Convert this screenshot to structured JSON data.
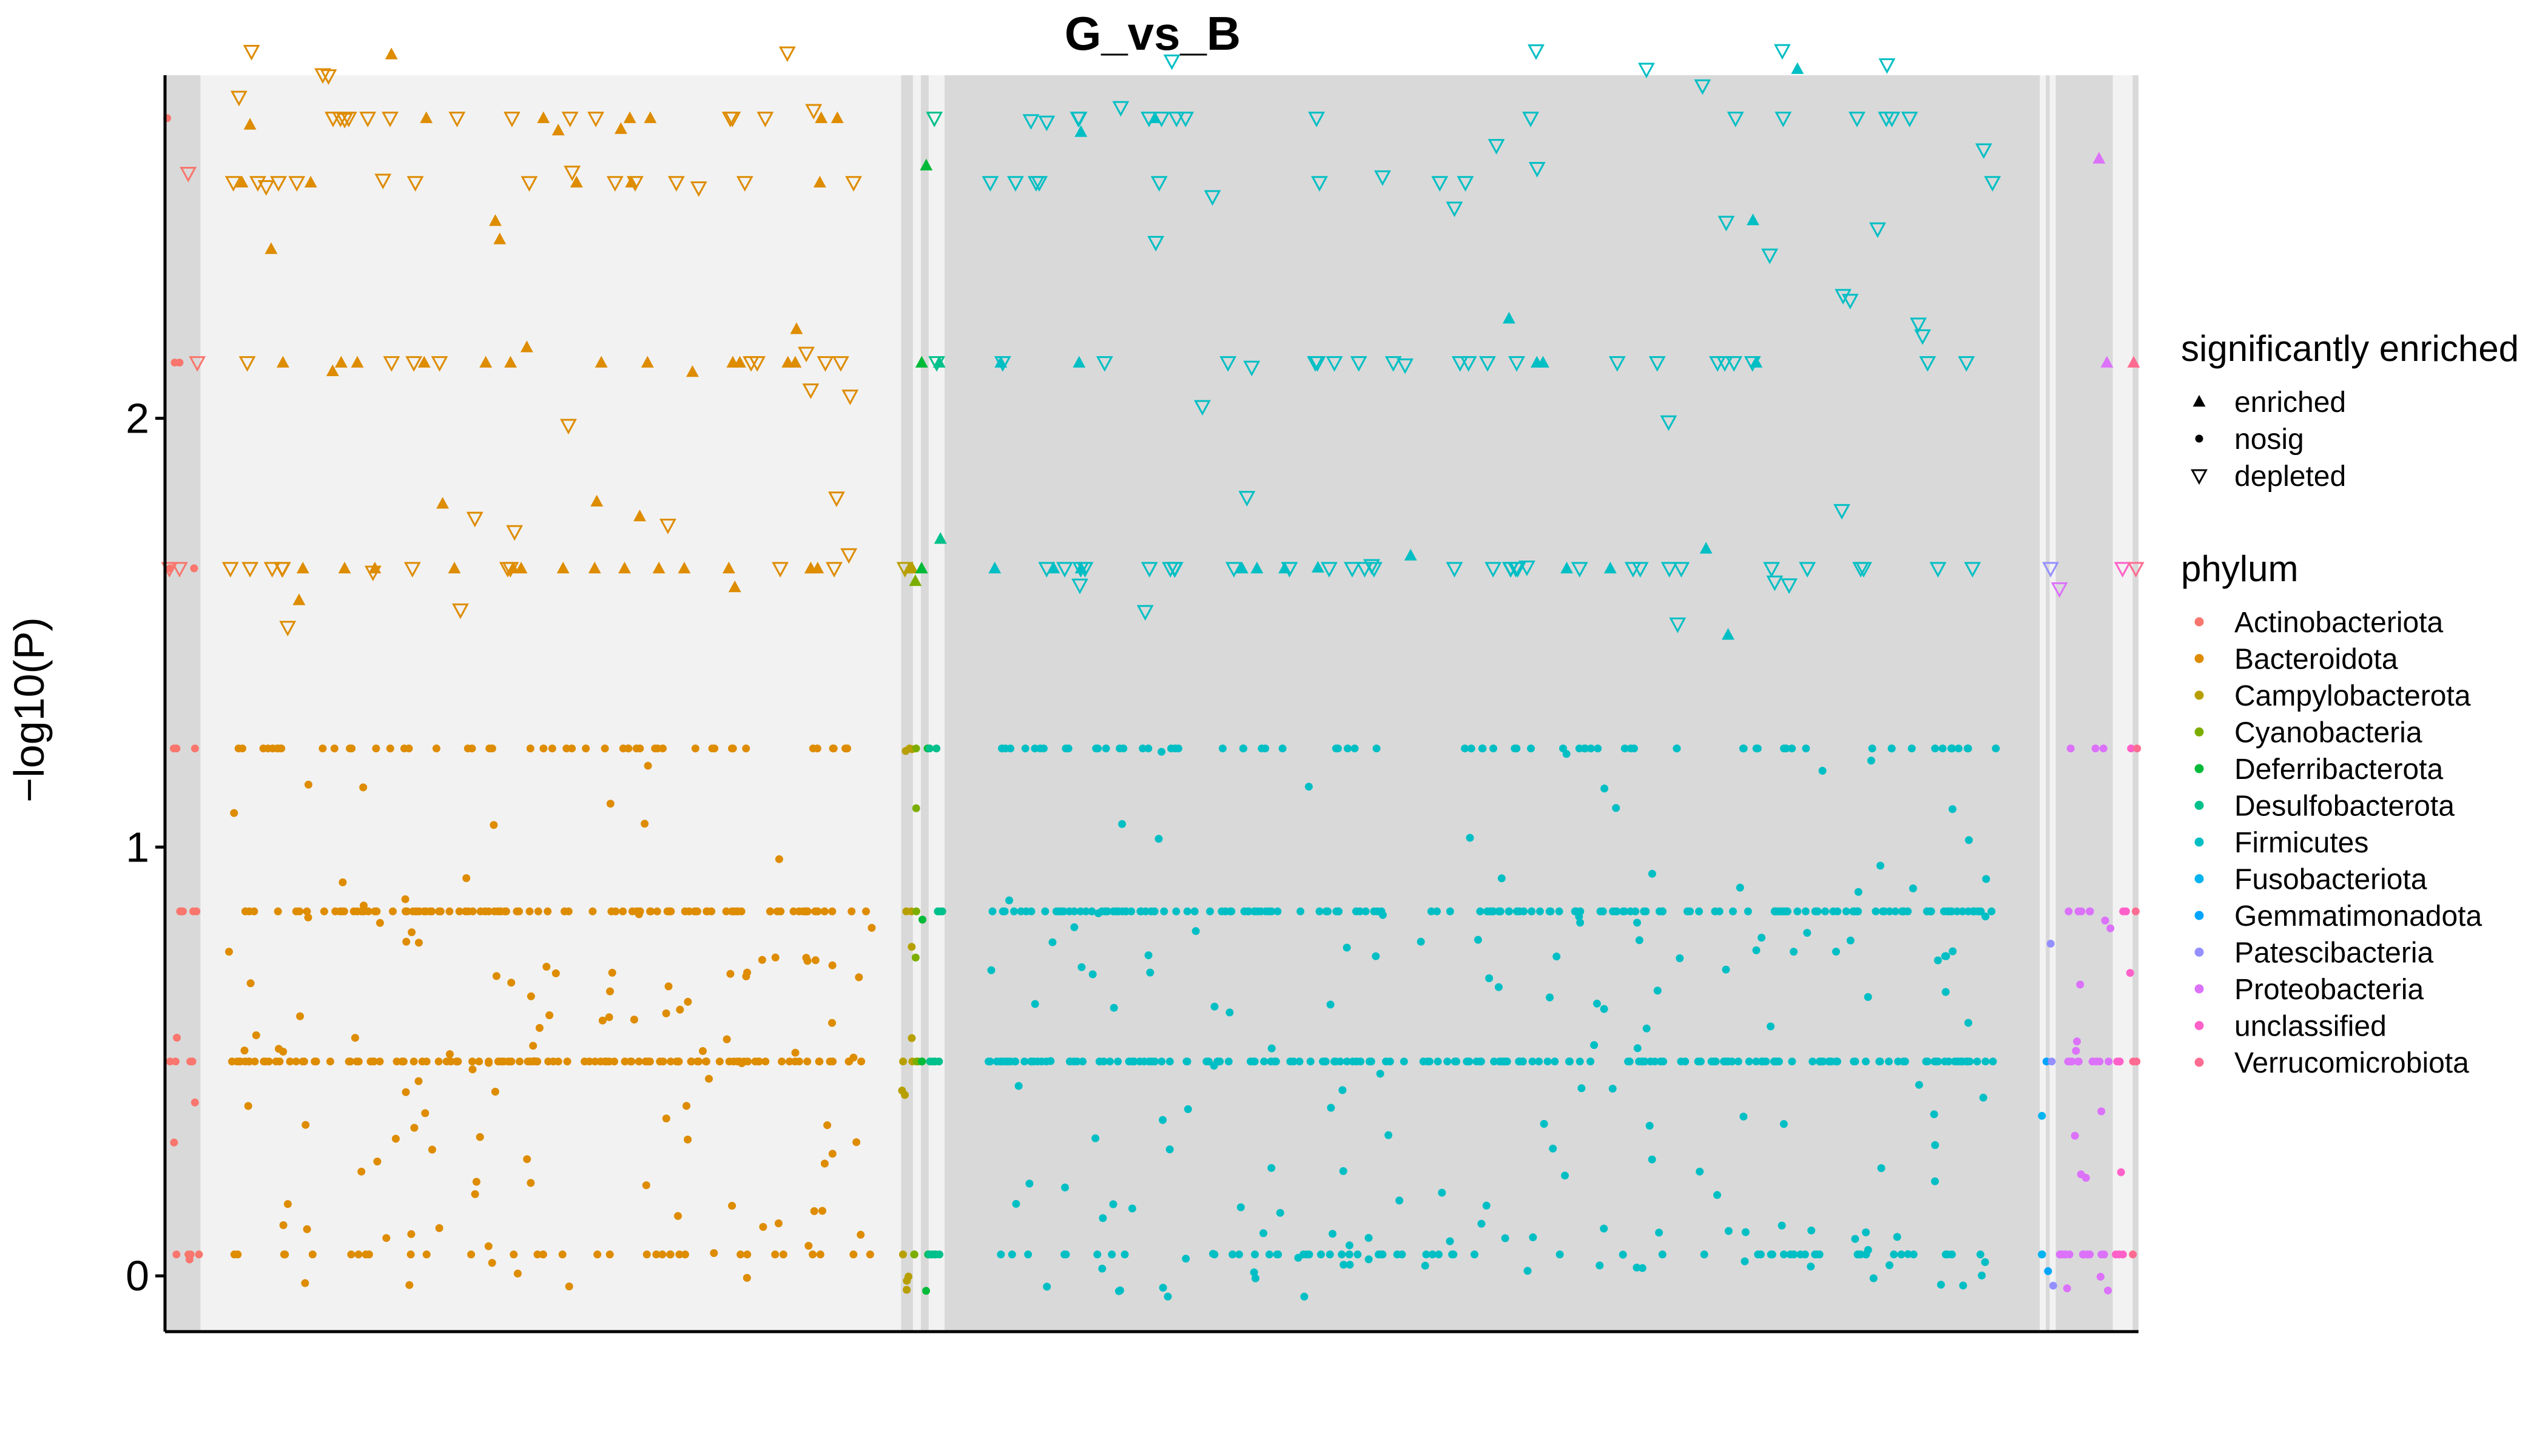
{
  "chart_data": {
    "type": "scatter",
    "title": "G_vs_B",
    "ylabel": "−log10(P)",
    "xlabel": "",
    "ylim": [
      -0.13,
      2.8
    ],
    "yticks": [
      0,
      1,
      2
    ],
    "ytick_labels": [
      "0",
      "1",
      "2"
    ],
    "y_levels": [
      0.05,
      0.5,
      0.85,
      1.23,
      1.65,
      2.13,
      2.55,
      2.7
    ],
    "xlim": [
      0,
      1000
    ],
    "legend_placement": "right",
    "grid": false,
    "shape_legend": {
      "title": "significantly enriched",
      "items": [
        {
          "label": "enriched",
          "shape": "triangle-up"
        },
        {
          "label": "nosig",
          "shape": "dot"
        },
        {
          "label": "depleted",
          "shape": "triangle-down-open"
        }
      ]
    },
    "phyla": [
      {
        "name": "Actinobacteriota",
        "color": "#F8766D",
        "x": [
          0,
          18
        ],
        "band": "#d9d9d9",
        "n": [
          5,
          6,
          6,
          3,
          2,
          2,
          0,
          1
        ],
        "up": [
          0,
          0,
          0,
          0,
          0,
          0,
          0,
          0
        ],
        "down": [
          0,
          0,
          0,
          0,
          2,
          1,
          0,
          1
        ]
      },
      {
        "name": "Bacteroidota",
        "color": "#DE8C00",
        "x": [
          18,
          373
        ],
        "band": "#f2f2f2",
        "n": [
          40,
          160,
          150,
          60,
          0,
          0,
          0,
          0
        ],
        "up": [
          0,
          0,
          0,
          0,
          20,
          16,
          8,
          10
        ],
        "down": [
          0,
          0,
          0,
          0,
          18,
          12,
          14,
          20
        ]
      },
      {
        "name": "Campylobacterota",
        "color": "#B79F00",
        "x": [
          373,
          379
        ],
        "band": "#d9d9d9",
        "n": [
          4,
          4,
          4,
          3,
          0,
          0,
          0,
          0
        ],
        "up": [
          0,
          0,
          0,
          0,
          2,
          0,
          0,
          0
        ],
        "down": [
          0,
          0,
          0,
          0,
          1,
          0,
          0,
          0
        ]
      },
      {
        "name": "Cyanobacteria",
        "color": "#7CAE00",
        "x": [
          379,
          383
        ],
        "band": "#f2f2f2",
        "n": [
          2,
          2,
          2,
          2,
          0,
          0,
          0,
          0
        ],
        "up": [
          0,
          0,
          0,
          0,
          1,
          0,
          0,
          0
        ],
        "down": [
          0,
          0,
          0,
          0,
          0,
          0,
          0,
          0
        ]
      },
      {
        "name": "Deferribacterota",
        "color": "#00BA38",
        "x": [
          383,
          387
        ],
        "band": "#d9d9d9",
        "n": [
          3,
          2,
          1,
          1,
          0,
          0,
          0,
          0
        ],
        "up": [
          0,
          0,
          0,
          0,
          1,
          1,
          1,
          0
        ],
        "down": [
          0,
          0,
          0,
          0,
          0,
          0,
          0,
          0
        ]
      },
      {
        "name": "Desulfobacterota",
        "color": "#00C08B",
        "x": [
          387,
          395
        ],
        "band": "#f2f2f2",
        "n": [
          5,
          4,
          3,
          2,
          0,
          0,
          0,
          0
        ],
        "up": [
          0,
          0,
          0,
          0,
          1,
          1,
          0,
          0
        ],
        "down": [
          0,
          0,
          0,
          0,
          0,
          1,
          0,
          1
        ]
      },
      {
        "name": "Firmicutes",
        "color": "#00BFC4",
        "x": [
          395,
          950
        ],
        "band": "#d9d9d9",
        "n": [
          90,
          240,
          220,
          90,
          0,
          0,
          0,
          0
        ],
        "up": [
          0,
          0,
          0,
          0,
          12,
          6,
          2,
          2
        ],
        "down": [
          0,
          0,
          0,
          0,
          40,
          28,
          18,
          24
        ]
      },
      {
        "name": "Fusobacteriota",
        "color": "#00B4F0",
        "x": [
          950,
          953
        ],
        "band": "#f2f2f2",
        "n": [
          2,
          1,
          0,
          0,
          0,
          0,
          0,
          0
        ],
        "up": [
          0,
          0,
          0,
          0,
          0,
          0,
          0,
          0
        ],
        "down": [
          0,
          0,
          0,
          0,
          0,
          0,
          0,
          0
        ]
      },
      {
        "name": "Gemmatimonadota",
        "color": "#00A5FF",
        "x": [
          953,
          955
        ],
        "band": "#d9d9d9",
        "n": [
          1,
          1,
          0,
          0,
          0,
          0,
          0,
          0
        ],
        "up": [
          0,
          0,
          0,
          0,
          0,
          0,
          0,
          0
        ],
        "down": [
          0,
          0,
          0,
          0,
          0,
          0,
          0,
          0
        ]
      },
      {
        "name": "Patescibacteria",
        "color": "#9590FF",
        "x": [
          955,
          958
        ],
        "band": "#f2f2f2",
        "n": [
          1,
          1,
          1,
          0,
          0,
          0,
          0,
          0
        ],
        "up": [
          0,
          0,
          0,
          0,
          0,
          0,
          0,
          0
        ],
        "down": [
          0,
          0,
          0,
          0,
          1,
          0,
          0,
          0
        ]
      },
      {
        "name": "Proteobacteria",
        "color": "#DC71FA",
        "x": [
          958,
          987
        ],
        "band": "#d9d9d9",
        "n": [
          16,
          14,
          10,
          3,
          0,
          0,
          0,
          0
        ],
        "up": [
          0,
          0,
          0,
          0,
          0,
          1,
          0,
          1
        ],
        "down": [
          0,
          0,
          0,
          0,
          1,
          0,
          0,
          0
        ]
      },
      {
        "name": "unclassified",
        "color": "#FF61C9",
        "x": [
          987,
          997
        ],
        "band": "#f2f2f2",
        "n": [
          3,
          4,
          3,
          1,
          0,
          0,
          0,
          0
        ],
        "up": [
          0,
          0,
          0,
          0,
          0,
          0,
          0,
          0
        ],
        "down": [
          0,
          0,
          0,
          0,
          1,
          0,
          0,
          0
        ]
      },
      {
        "name": "Verrucomicrobiota",
        "color": "#FF6C91",
        "x": [
          997,
          1000
        ],
        "band": "#d9d9d9",
        "n": [
          1,
          2,
          1,
          1,
          0,
          0,
          0,
          0
        ],
        "up": [
          0,
          0,
          0,
          0,
          0,
          1,
          0,
          0
        ],
        "down": [
          0,
          0,
          0,
          0,
          1,
          0,
          0,
          0
        ]
      }
    ]
  }
}
